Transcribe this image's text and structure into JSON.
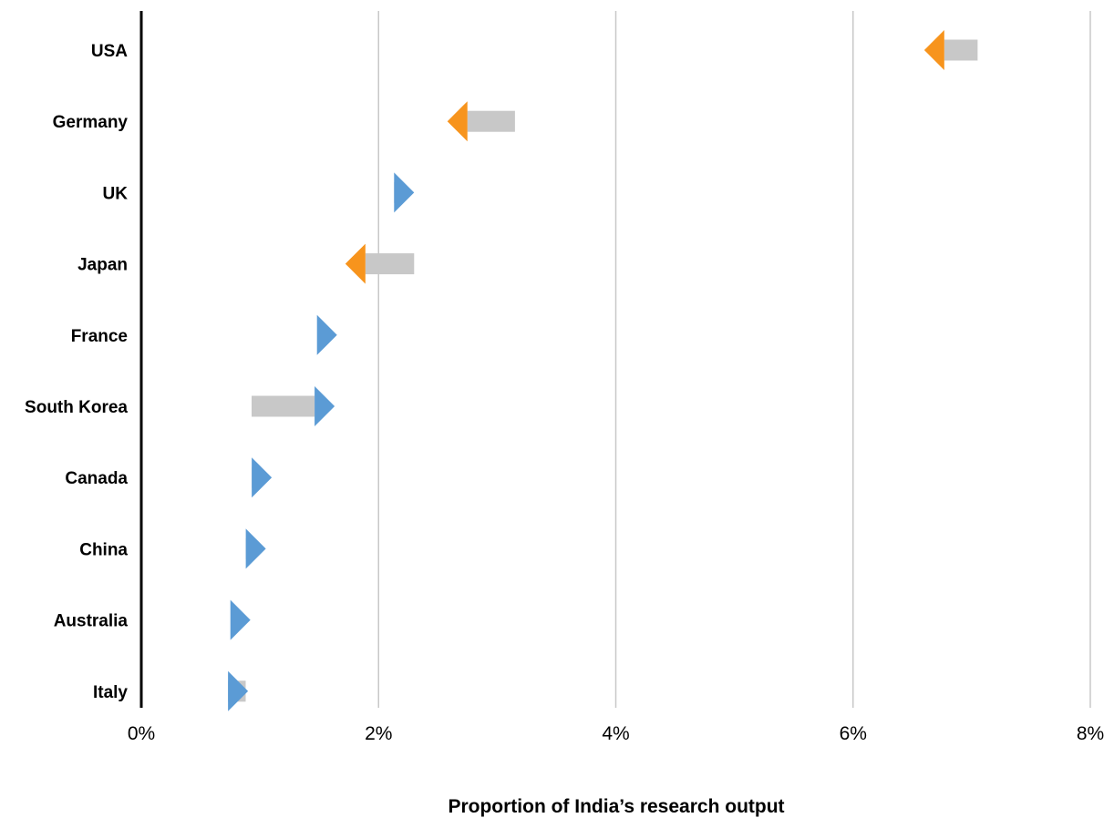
{
  "chart_data": {
    "type": "arrow",
    "title": "",
    "xlabel": "Proportion of India’s research output",
    "ylabel": "",
    "xlim": [
      0,
      8
    ],
    "x_unit": "%",
    "x_ticks": [
      "0%",
      "2%",
      "4%",
      "6%",
      "8%"
    ],
    "grid": "vertical",
    "legend": "none",
    "colors": {
      "increase": "#5B9BD5",
      "decrease": "#F7941D",
      "shaft": "#C8C8C8",
      "grid": "#C8C8C8",
      "axis": "#000000"
    },
    "categories": [
      "USA",
      "Germany",
      "UK",
      "Japan",
      "France",
      "South Korea",
      "Canada",
      "China",
      "Australia",
      "Italy"
    ],
    "start_values": [
      7.05,
      3.15,
      2.2,
      2.3,
      1.48,
      0.93,
      0.98,
      0.9,
      0.75,
      0.88
    ],
    "end_values": [
      6.6,
      2.58,
      2.3,
      1.72,
      1.65,
      1.63,
      1.1,
      1.05,
      0.92,
      0.9
    ]
  }
}
